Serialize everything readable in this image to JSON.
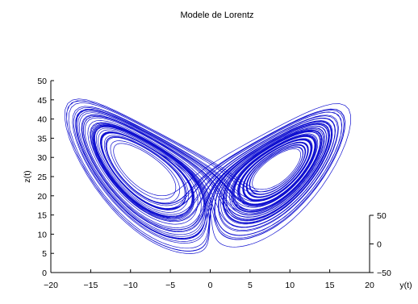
{
  "chart_data": {
    "type": "line",
    "title": "Modele de Lorentz",
    "xlabel": "",
    "ylabel": "y(t)",
    "zlabel": "z(t)",
    "projection": "3d",
    "xlim": [
      -20,
      20
    ],
    "ylim": [
      -50,
      50
    ],
    "zlim": [
      0,
      50
    ],
    "x_ticks": [
      "−20",
      "−15",
      "−10",
      "−5",
      "0",
      "5",
      "10",
      "15",
      "20"
    ],
    "y_ticks": [
      "−50",
      "0",
      "50"
    ],
    "z_ticks": [
      "0",
      "5",
      "10",
      "15",
      "20",
      "25",
      "30",
      "35",
      "40",
      "45",
      "50"
    ],
    "series": [
      {
        "color": "#1010d0",
        "system": "lorenz",
        "sigma": 10,
        "rho": 28,
        "beta": 2.667,
        "initial": [
          -8,
          0,
          33
        ],
        "dt": 0.005,
        "steps": 16000
      }
    ]
  }
}
